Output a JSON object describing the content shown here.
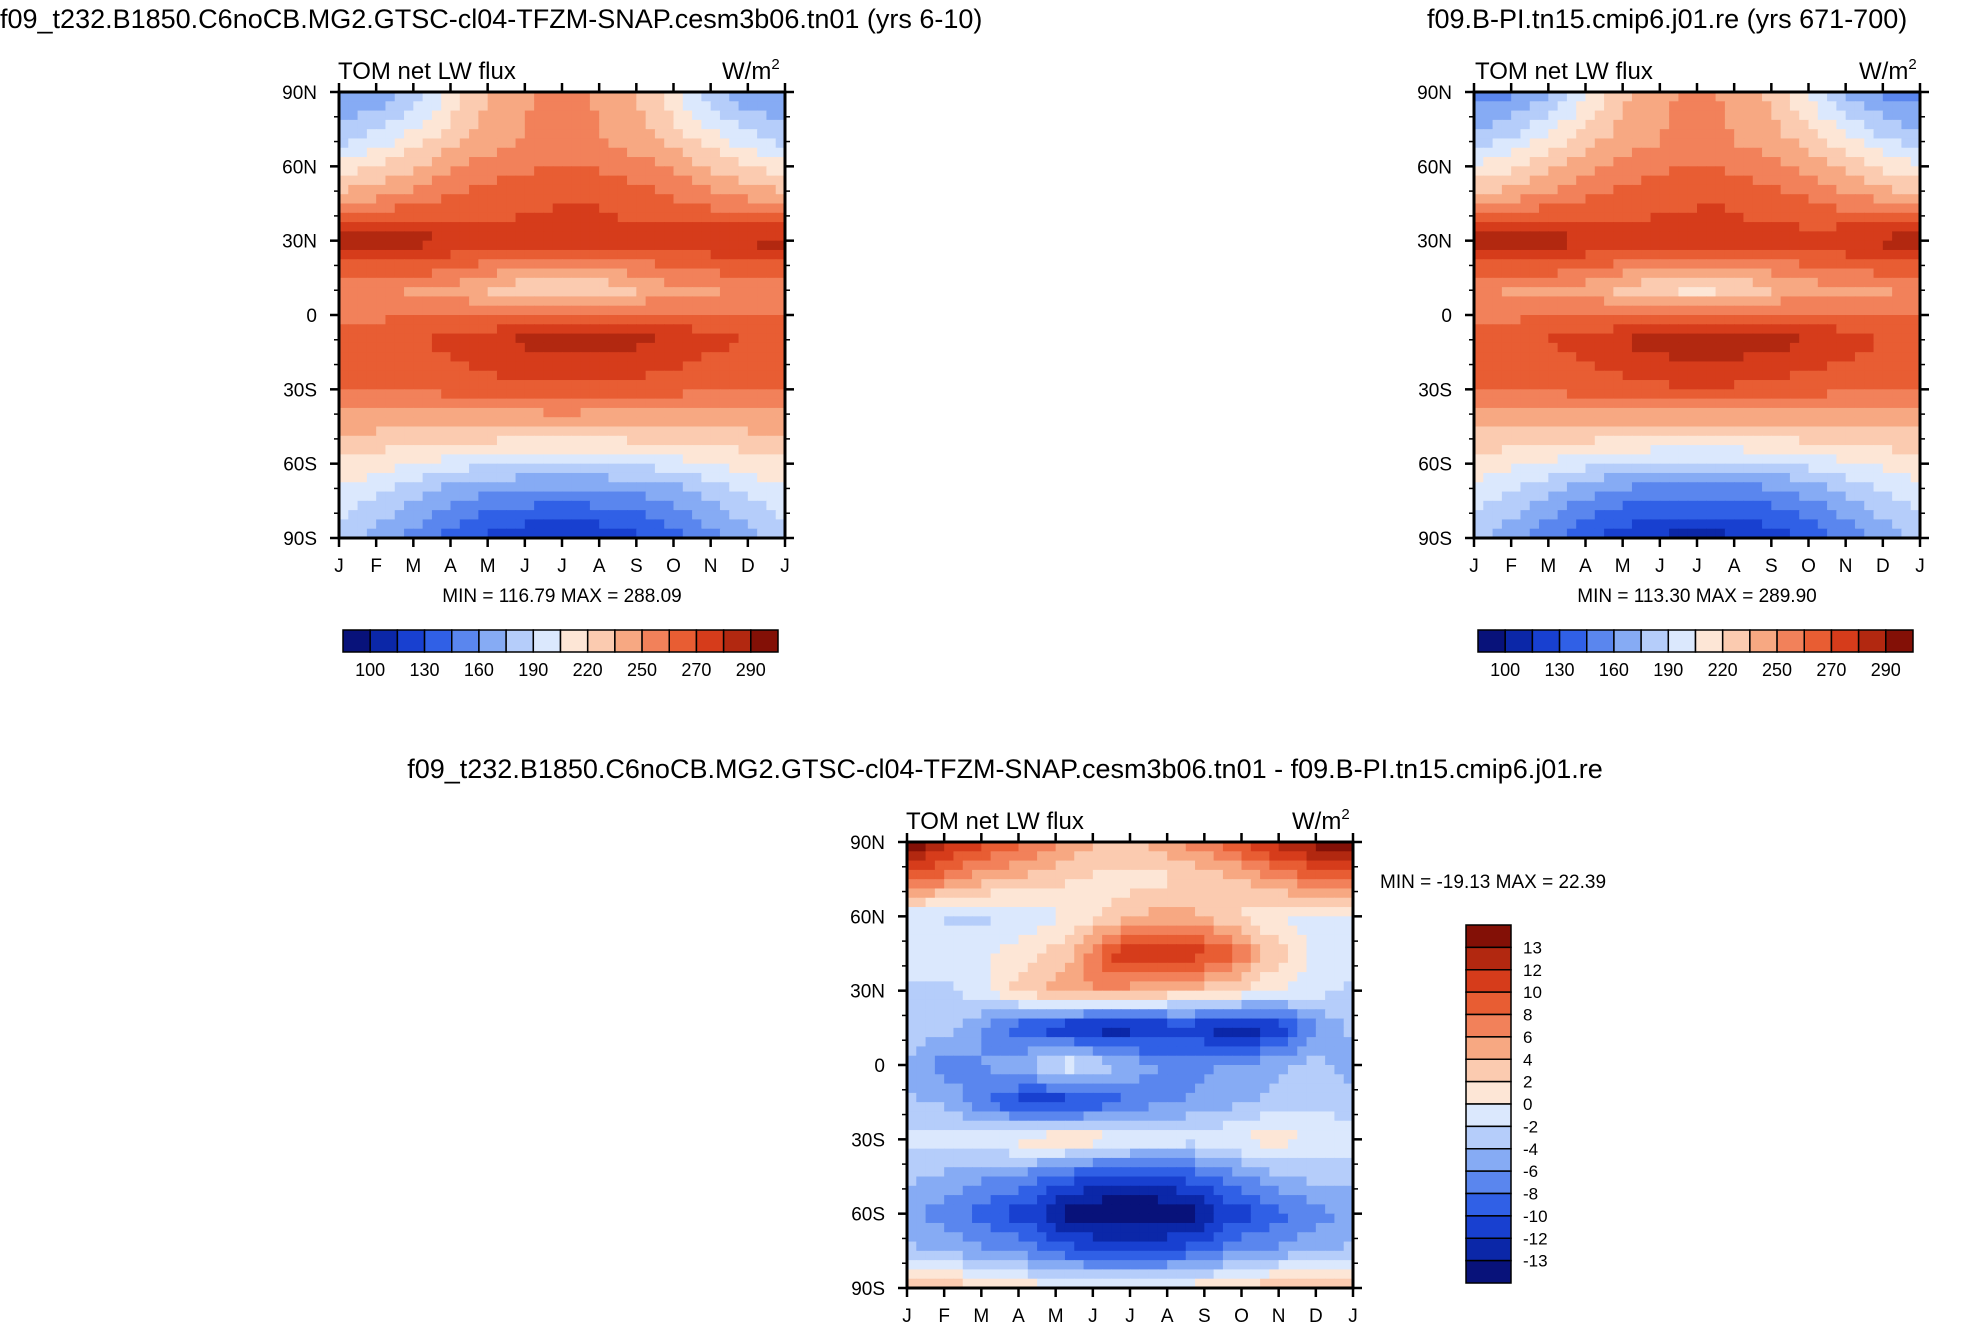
{
  "chart_data": [
    {
      "type": "heatmap",
      "id": "panel-left",
      "header": "f09_t232.B1850.C6noCB.MG2.GTSC-cl04-TFZM-SNAP.cesm3b06.tn01 (yrs 6-10)",
      "title": "TOM net LW flux",
      "units": "W/m",
      "units_sup": "2",
      "x_ticks": [
        "J",
        "F",
        "M",
        "A",
        "M",
        "J",
        "J",
        "A",
        "S",
        "O",
        "N",
        "D",
        "J"
      ],
      "y_ticks": [
        "90N",
        "60N",
        "30N",
        "0",
        "30S",
        "60S",
        "90S"
      ],
      "stats": "MIN = 116.79 MAX = 288.09",
      "min": 116.79,
      "max": 288.09,
      "colorbar_labels": [
        "100",
        "130",
        "160",
        "190",
        "220",
        "250",
        "270",
        "290"
      ],
      "z": [
        [
          160,
          165,
          180,
          210,
          230,
          240,
          240,
          230,
          210,
          180,
          165,
          160
        ],
        [
          185,
          195,
          210,
          225,
          235,
          240,
          240,
          235,
          225,
          210,
          195,
          185
        ],
        [
          225,
          230,
          240,
          250,
          255,
          258,
          260,
          255,
          250,
          240,
          230,
          225
        ],
        [
          280,
          282,
          280,
          272,
          268,
          270,
          272,
          268,
          268,
          272,
          278,
          280
        ],
        [
          240,
          238,
          236,
          232,
          220,
          212,
          212,
          220,
          232,
          236,
          238,
          240
        ],
        [
          255,
          258,
          262,
          268,
          275,
          280,
          282,
          280,
          275,
          268,
          262,
          258
        ],
        [
          250,
          250,
          252,
          255,
          258,
          260,
          260,
          258,
          255,
          252,
          250,
          250
        ],
        [
          222,
          220,
          218,
          216,
          214,
          212,
          212,
          214,
          216,
          218,
          220,
          222
        ],
        [
          200,
          190,
          180,
          170,
          165,
          162,
          162,
          165,
          170,
          180,
          190,
          200
        ],
        [
          180,
          168,
          155,
          140,
          130,
          125,
          125,
          130,
          140,
          155,
          168,
          180
        ]
      ]
    },
    {
      "type": "heatmap",
      "id": "panel-right",
      "header": "f09.B-PI.tn15.cmip6.j01.re (yrs 671-700)",
      "title": "TOM net LW flux",
      "units": "W/m",
      "units_sup": "2",
      "x_ticks": [
        "J",
        "F",
        "M",
        "A",
        "M",
        "J",
        "J",
        "A",
        "S",
        "O",
        "N",
        "D",
        "J"
      ],
      "y_ticks": [
        "90N",
        "60N",
        "30N",
        "0",
        "30S",
        "60S",
        "90S"
      ],
      "stats": "MIN = 113.30 MAX = 289.90",
      "min": 113.3,
      "max": 289.9,
      "colorbar_labels": [
        "100",
        "130",
        "160",
        "190",
        "220",
        "250",
        "270",
        "290"
      ],
      "z": [
        [
          155,
          160,
          175,
          205,
          228,
          238,
          238,
          228,
          205,
          175,
          160,
          155
        ],
        [
          180,
          192,
          208,
          224,
          234,
          240,
          240,
          234,
          224,
          208,
          192,
          180
        ],
        [
          222,
          228,
          238,
          248,
          254,
          258,
          258,
          254,
          248,
          238,
          228,
          222
        ],
        [
          282,
          283,
          281,
          274,
          268,
          270,
          272,
          268,
          268,
          272,
          279,
          282
        ],
        [
          238,
          236,
          234,
          230,
          218,
          210,
          210,
          218,
          230,
          234,
          236,
          238
        ],
        [
          256,
          259,
          264,
          270,
          278,
          283,
          284,
          282,
          277,
          270,
          263,
          258
        ],
        [
          250,
          251,
          253,
          256,
          259,
          261,
          261,
          259,
          256,
          253,
          251,
          250
        ],
        [
          220,
          218,
          216,
          214,
          212,
          210,
          210,
          212,
          214,
          216,
          218,
          220
        ],
        [
          198,
          188,
          176,
          166,
          160,
          158,
          158,
          160,
          166,
          176,
          188,
          198
        ],
        [
          178,
          165,
          150,
          136,
          126,
          120,
          120,
          126,
          136,
          150,
          165,
          178
        ]
      ]
    },
    {
      "type": "heatmap",
      "id": "panel-diff",
      "header": "f09_t232.B1850.C6noCB.MG2.GTSC-cl04-TFZM-SNAP.cesm3b06.tn01 - f09.B-PI.tn15.cmip6.j01.re",
      "title": "TOM net LW flux",
      "units": "W/m",
      "units_sup": "2",
      "x_ticks": [
        "J",
        "F",
        "M",
        "A",
        "M",
        "J",
        "J",
        "A",
        "S",
        "O",
        "N",
        "D",
        "J"
      ],
      "y_ticks": [
        "90N",
        "60N",
        "30N",
        "0",
        "30S",
        "60S",
        "90S"
      ],
      "stats": "MIN = -19.13 MAX =  22.39",
      "min": -19.13,
      "max": 22.39,
      "colorbar_labels": [
        "13",
        "12",
        "10",
        "8",
        "6",
        "4",
        "2",
        "0",
        "-2",
        "-4",
        "-6",
        "-8",
        "-10",
        "-12",
        "-13"
      ],
      "z": [
        [
          14,
          11,
          9,
          7,
          5,
          3,
          4,
          6,
          8,
          11,
          13,
          14
        ],
        [
          8,
          6,
          4,
          3,
          2,
          1,
          1,
          2,
          3,
          5,
          7,
          8
        ],
        [
          -1,
          -2,
          -2,
          -1,
          0,
          2,
          4,
          4,
          2,
          0,
          -1,
          -1
        ],
        [
          -1,
          -1,
          0,
          1,
          3,
          9,
          11,
          10,
          8,
          3,
          0,
          -1
        ],
        [
          -2,
          -2,
          0,
          3,
          5,
          5,
          4,
          3,
          2,
          0,
          -1,
          -2
        ],
        [
          -2,
          -3,
          -6,
          -9,
          -11,
          -12,
          -11,
          -10,
          -12,
          -11,
          -6,
          -3
        ],
        [
          -4,
          -6,
          -5,
          -3,
          0,
          -3,
          -5,
          -6,
          -5,
          -4,
          -3,
          -4
        ],
        [
          -3,
          -4,
          -7,
          -10,
          -10,
          -8,
          -6,
          -5,
          -4,
          -3,
          -2,
          -3
        ],
        [
          -1,
          -1,
          0,
          1,
          2,
          1,
          0,
          -1,
          0,
          1,
          0,
          -1
        ],
        [
          -3,
          -4,
          -5,
          -6,
          -8,
          -10,
          -10,
          -8,
          -6,
          -4,
          -3,
          -3
        ],
        [
          -5,
          -6,
          -8,
          -10,
          -13,
          -14,
          -14,
          -13,
          -10,
          -8,
          -6,
          -5
        ],
        [
          -3,
          -4,
          -5,
          -6,
          -8,
          -9,
          -9,
          -8,
          -6,
          -5,
          -4,
          -3
        ],
        [
          4,
          3,
          2,
          1,
          0,
          0,
          0,
          1,
          2,
          3,
          4,
          4
        ]
      ]
    }
  ],
  "palettes": {
    "abs": [
      "#08127a",
      "#0b27a8",
      "#1840d0",
      "#3060e6",
      "#5a86ee",
      "#86abf4",
      "#b5cdfa",
      "#dbe8fd",
      "#fde6d6",
      "#fbcbb0",
      "#f7a882",
      "#f2815a",
      "#e85d33",
      "#d63c1b",
      "#b22810",
      "#831006"
    ],
    "diff": [
      "#831006",
      "#b22810",
      "#d63c1b",
      "#e85d33",
      "#f2815a",
      "#f7a882",
      "#fbcbb0",
      "#fde6d6",
      "#dbe8fd",
      "#b5cdfa",
      "#86abf4",
      "#5a86ee",
      "#3060e6",
      "#1840d0",
      "#0b27a8",
      "#08127a"
    ]
  }
}
